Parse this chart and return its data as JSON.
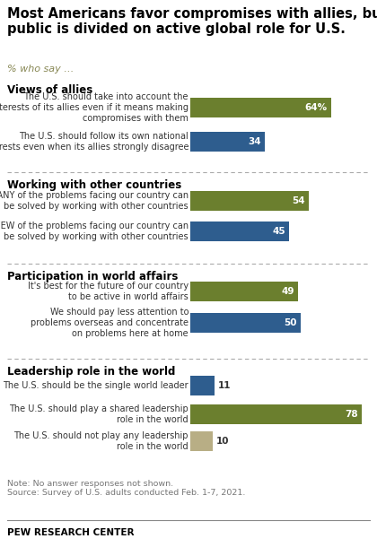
{
  "title": "Most Americans favor compromises with allies, but\npublic is divided on active global role for U.S.",
  "subtitle": "% who say …",
  "sections": [
    {
      "header": "Views of allies",
      "bars": [
        {
          "label": "The U.S. should take into account the\ninterests of its allies even if it means making\ncompromises with them",
          "value": 64,
          "color": "#6b7f2e",
          "show_pct": true
        },
        {
          "label": "The U.S. should follow its own national\ninterests even when its allies strongly disagree",
          "value": 34,
          "color": "#2e5d8e",
          "show_pct": false
        }
      ]
    },
    {
      "header": "Working with other countries",
      "bars": [
        {
          "label": "MANY of the problems facing our country can\nbe solved by working with other countries",
          "value": 54,
          "color": "#6b7f2e",
          "show_pct": false
        },
        {
          "label": "FEW of the problems facing our country can\nbe solved by working with other countries",
          "value": 45,
          "color": "#2e5d8e",
          "show_pct": false
        }
      ]
    },
    {
      "header": "Participation in world affairs",
      "bars": [
        {
          "label": "It's best for the future of our country\nto be active in world affairs",
          "value": 49,
          "color": "#6b7f2e",
          "show_pct": false
        },
        {
          "label": "We should pay less attention to\nproblems overseas and concentrate\non problems here at home",
          "value": 50,
          "color": "#2e5d8e",
          "show_pct": false
        }
      ]
    },
    {
      "header": "Leadership role in the world",
      "bars": [
        {
          "label": "The U.S. should be the single world leader",
          "value": 11,
          "color": "#2e5d8e",
          "show_pct": false
        },
        {
          "label": "The U.S. should play a shared leadership\nrole in the world",
          "value": 78,
          "color": "#6b7f2e",
          "show_pct": false
        },
        {
          "label": "The U.S. should not play any leadership\nrole in the world",
          "value": 10,
          "color": "#b8ae85",
          "show_pct": false
        }
      ]
    }
  ],
  "note": "Note: No answer responses not shown.\nSource: Survey of U.S. adults conducted Feb. 1-7, 2021.",
  "footer": "PEW RESEARCH CENTER",
  "bar_max": 80,
  "background_color": "#ffffff",
  "separator_color": "#aaaaaa",
  "label_color": "#333333",
  "header_color": "#000000",
  "subtitle_color": "#888855"
}
